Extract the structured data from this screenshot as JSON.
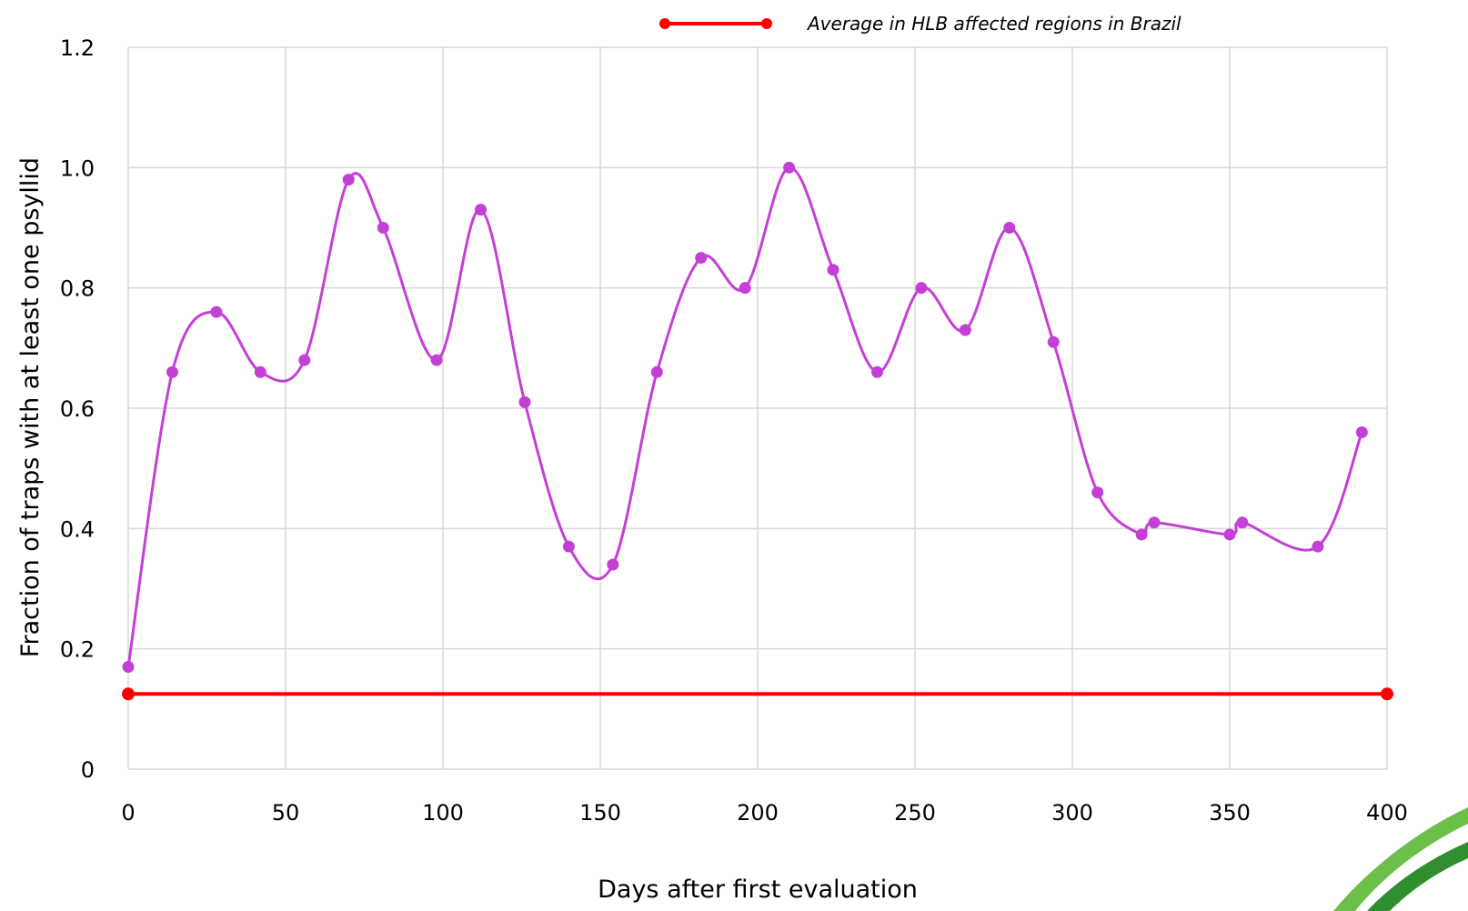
{
  "chart_data": {
    "type": "line",
    "xlabel": "Days after first evaluation",
    "ylabel": "Fraction of traps with at least one psyllid",
    "xlim": [
      0,
      400
    ],
    "ylim": [
      0,
      1.2
    ],
    "x_ticks": [
      "0",
      "50",
      "100",
      "150",
      "200",
      "250",
      "300",
      "350",
      "400"
    ],
    "y_ticks": [
      "0",
      "0.2",
      "0.4",
      "0.6",
      "0.8",
      "1.0",
      "1.2"
    ],
    "grid": true,
    "legend_position": "top-right",
    "series": [
      {
        "name": "",
        "color": "#c43fd6",
        "smooth": true,
        "x": [
          0,
          14,
          28,
          42,
          56,
          70,
          81,
          98,
          112,
          126,
          140,
          154,
          168,
          182,
          196,
          210,
          224,
          238,
          252,
          266,
          280,
          294,
          308,
          322,
          326,
          350,
          354,
          378,
          392
        ],
        "y": [
          0.17,
          0.66,
          0.76,
          0.66,
          0.68,
          0.98,
          0.9,
          0.68,
          0.93,
          0.61,
          0.37,
          0.34,
          0.66,
          0.85,
          0.8,
          1.0,
          0.83,
          0.66,
          0.8,
          0.73,
          0.9,
          0.71,
          0.46,
          0.39,
          0.41,
          0.39,
          0.41,
          0.37,
          0.56
        ]
      },
      {
        "name": "Average in HLB affected regions in Brazil",
        "color": "#ff0000",
        "smooth": false,
        "x": [
          0,
          400
        ],
        "y": [
          0.125,
          0.125
        ]
      }
    ]
  },
  "logo": {
    "color_outer": "#6cc04a",
    "color_inner": "#2f8f2f"
  }
}
